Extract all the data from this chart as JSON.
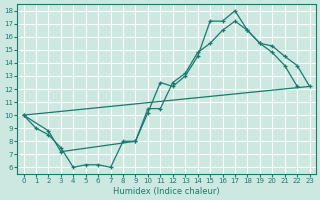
{
  "xlabel": "Humidex (Indice chaleur)",
  "bg_color": "#cce8e0",
  "line_color": "#1a7a6e",
  "grid_color": "#ffffff",
  "xlim": [
    -0.5,
    23.5
  ],
  "ylim": [
    5.5,
    18.5
  ],
  "xticks": [
    0,
    1,
    2,
    3,
    4,
    5,
    6,
    7,
    8,
    9,
    10,
    11,
    12,
    13,
    14,
    15,
    16,
    17,
    18,
    19,
    20,
    21,
    22,
    23
  ],
  "yticks": [
    6,
    7,
    8,
    9,
    10,
    11,
    12,
    13,
    14,
    15,
    16,
    17,
    18
  ],
  "line1_x": [
    0,
    1,
    2,
    3,
    4,
    5,
    6,
    7,
    8,
    9,
    10,
    11,
    12,
    13,
    14,
    15,
    16,
    17,
    18,
    19,
    20,
    21,
    22
  ],
  "line1_y": [
    10,
    9,
    8.5,
    7.5,
    6,
    6.2,
    6.2,
    6,
    8,
    8,
    10.2,
    12.5,
    12.2,
    13.0,
    14.5,
    17.2,
    17.2,
    18.0,
    16.5,
    15.5,
    14.8,
    13.8,
    12.2
  ],
  "line2_x": [
    0,
    2,
    3,
    9,
    10,
    11,
    12,
    13,
    14,
    15,
    16,
    17,
    18,
    19,
    20,
    21,
    22,
    23
  ],
  "line2_y": [
    10,
    8.8,
    7.2,
    8.0,
    10.5,
    10.5,
    12.5,
    13.2,
    14.8,
    15.5,
    16.5,
    17.2,
    16.5,
    15.5,
    15.3,
    14.5,
    13.8,
    12.2
  ],
  "line3_x": [
    0,
    23
  ],
  "line3_y": [
    10,
    12.2
  ]
}
